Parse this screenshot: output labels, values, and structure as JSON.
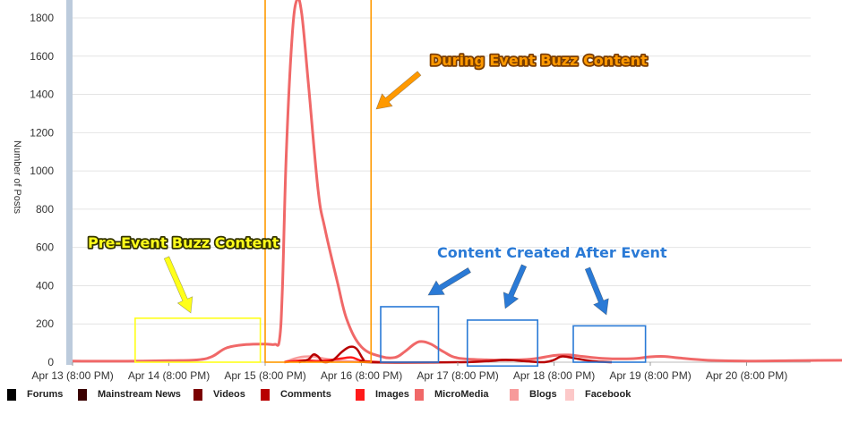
{
  "chart_data": {
    "type": "line",
    "ylabel": "Number of Posts",
    "xlabel": "",
    "ylim": [
      0,
      1900
    ],
    "y_ticks": [
      0,
      200,
      400,
      600,
      800,
      1000,
      1200,
      1400,
      1600,
      1800
    ],
    "x_range": [
      0,
      8.85
    ],
    "x_ticks": [
      {
        "x": 0,
        "label": "Apr 13 (8:00 PM)"
      },
      {
        "x": 1,
        "label": "Apr 14 (8:00 PM)"
      },
      {
        "x": 2,
        "label": "Apr 15 (8:00 PM)"
      },
      {
        "x": 3,
        "label": "Apr 16 (8:00 PM)"
      },
      {
        "x": 4,
        "label": "Apr 17 (8:00 PM)"
      },
      {
        "x": 5,
        "label": "Apr 18 (8:00 PM)"
      },
      {
        "x": 6,
        "label": "Apr 19 (8:00 PM)"
      },
      {
        "x": 7,
        "label": "Apr 20 (8:00 PM)"
      }
    ],
    "grid": true,
    "legend_position": "bottom",
    "series": [
      {
        "name": "Forums",
        "color": "#000000",
        "points": []
      },
      {
        "name": "Mainstream News",
        "color": "#3a0000",
        "points": []
      },
      {
        "name": "Videos",
        "color": "#7a0000",
        "points": []
      },
      {
        "name": "Comments",
        "color": "#b80000",
        "points": [
          [
            2.35,
            0
          ],
          [
            2.45,
            15
          ],
          [
            2.5,
            40
          ],
          [
            2.55,
            30
          ],
          [
            2.6,
            2
          ],
          [
            2.7,
            10
          ],
          [
            2.8,
            55
          ],
          [
            2.88,
            80
          ],
          [
            2.95,
            70
          ],
          [
            3.02,
            15
          ],
          [
            3.08,
            0
          ],
          [
            4.0,
            0
          ],
          [
            4.3,
            5
          ],
          [
            4.5,
            12
          ],
          [
            4.7,
            5
          ],
          [
            4.9,
            0
          ],
          [
            5.0,
            12
          ],
          [
            5.08,
            30
          ],
          [
            5.2,
            22
          ],
          [
            5.4,
            5
          ],
          [
            5.6,
            0
          ]
        ]
      },
      {
        "name": "Images",
        "color": "#ff1a1a",
        "points": [
          [
            2.2,
            0
          ],
          [
            2.4,
            10
          ],
          [
            2.55,
            5
          ],
          [
            2.8,
            20
          ],
          [
            2.9,
            25
          ],
          [
            3.0,
            8
          ],
          [
            3.2,
            0
          ]
        ]
      },
      {
        "name": "MicroMedia",
        "color": "#f06868",
        "points": [
          [
            0.0,
            6
          ],
          [
            0.5,
            5
          ],
          [
            1.0,
            8
          ],
          [
            1.3,
            12
          ],
          [
            1.45,
            30
          ],
          [
            1.6,
            75
          ],
          [
            1.8,
            92
          ],
          [
            2.0,
            95
          ],
          [
            2.1,
            93
          ],
          [
            2.15,
            120
          ],
          [
            2.18,
            400
          ],
          [
            2.22,
            1100
          ],
          [
            2.28,
            1700
          ],
          [
            2.33,
            1895
          ],
          [
            2.38,
            1820
          ],
          [
            2.45,
            1450
          ],
          [
            2.55,
            900
          ],
          [
            2.62,
            700
          ],
          [
            2.75,
            420
          ],
          [
            2.85,
            220
          ],
          [
            3.0,
            80
          ],
          [
            3.2,
            30
          ],
          [
            3.35,
            25
          ],
          [
            3.45,
            55
          ],
          [
            3.55,
            95
          ],
          [
            3.62,
            108
          ],
          [
            3.72,
            95
          ],
          [
            3.85,
            55
          ],
          [
            4.0,
            22
          ],
          [
            4.3,
            12
          ],
          [
            4.6,
            12
          ],
          [
            4.8,
            18
          ],
          [
            5.0,
            35
          ],
          [
            5.15,
            38
          ],
          [
            5.3,
            30
          ],
          [
            5.5,
            20
          ],
          [
            5.8,
            18
          ],
          [
            6.0,
            28
          ],
          [
            6.15,
            30
          ],
          [
            6.3,
            22
          ],
          [
            6.6,
            10
          ],
          [
            7.0,
            6
          ],
          [
            7.5,
            8
          ],
          [
            8.0,
            10
          ],
          [
            8.5,
            9
          ],
          [
            8.85,
            8
          ]
        ]
      },
      {
        "name": "Blogs",
        "color": "#f79a9a",
        "points": [
          [
            2.2,
            0
          ],
          [
            2.35,
            25
          ],
          [
            2.5,
            30
          ],
          [
            2.6,
            20
          ],
          [
            2.75,
            8
          ],
          [
            2.95,
            3
          ],
          [
            3.2,
            0
          ]
        ]
      },
      {
        "name": "Facebook",
        "color": "#fcc8c8",
        "points": [
          [
            2.2,
            0
          ],
          [
            2.4,
            10
          ],
          [
            2.6,
            12
          ],
          [
            2.8,
            5
          ],
          [
            3.0,
            0
          ]
        ]
      }
    ],
    "annotations": [
      {
        "label": "During Event Buzz Content",
        "color": "#ff9900",
        "x_range": [
          2.0,
          3.1
        ],
        "y_range": [
          0,
          1910
        ]
      },
      {
        "label": "Pre-Event Buzz Content",
        "color": "#ffff1a",
        "x_range": [
          0.65,
          1.95
        ],
        "y_range": [
          0,
          230
        ]
      },
      {
        "label": "Content Created After Event",
        "color": "#2a7ad6",
        "boxes": [
          {
            "x_range": [
              3.2,
              3.8
            ],
            "y_range": [
              0,
              290
            ]
          },
          {
            "x_range": [
              4.1,
              4.83
            ],
            "y_range": [
              -20,
              220
            ]
          },
          {
            "x_range": [
              5.2,
              5.95
            ],
            "y_range": [
              0,
              190
            ]
          }
        ]
      }
    ]
  }
}
